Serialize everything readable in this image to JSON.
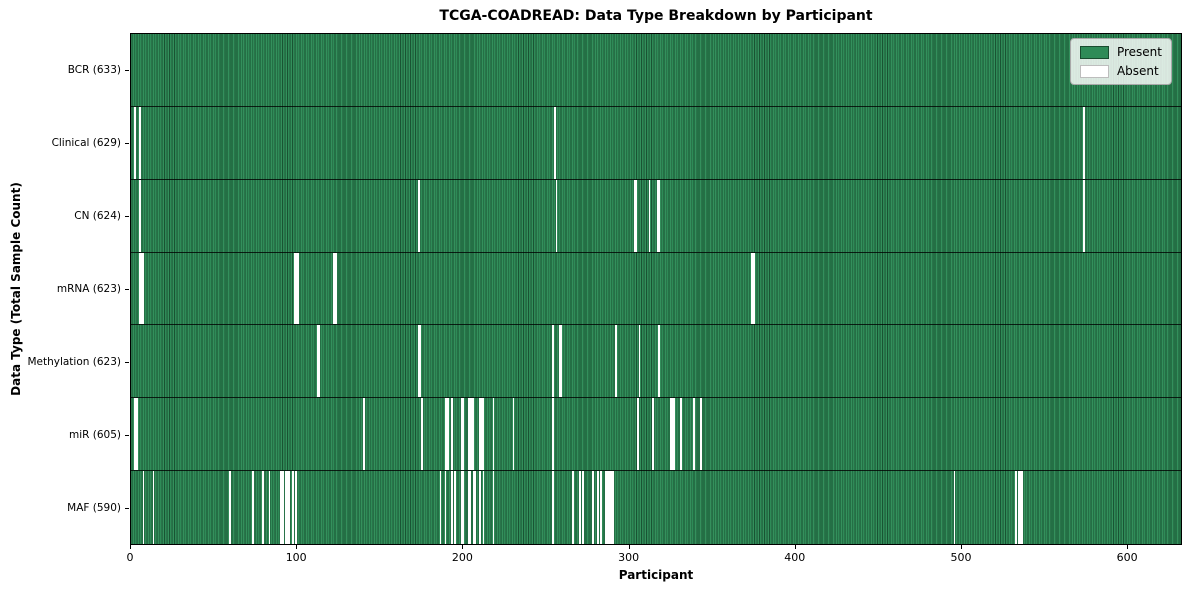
{
  "figure": {
    "title": "TCGA-COADREAD: Data Type Breakdown by Participant",
    "xlabel": "Participant",
    "ylabel": "Data Type (Total Sample Count)"
  },
  "legend": {
    "items": [
      {
        "label": "Present",
        "color": "#2e8b57"
      },
      {
        "label": "Absent",
        "color": "#ffffff"
      }
    ]
  },
  "chart_data": {
    "type": "heatmap",
    "title": "TCGA-COADREAD: Data Type Breakdown by Participant",
    "xlabel": "Participant",
    "ylabel": "Data Type (Total Sample Count)",
    "legend": [
      "Present",
      "Absent"
    ],
    "legend_position": "upper right",
    "grid": false,
    "n_participants": 633,
    "xlim": [
      0,
      633
    ],
    "x_ticks": [
      0,
      100,
      200,
      300,
      400,
      500,
      600
    ],
    "colors": {
      "present": "#2e8b57",
      "absent": "#ffffff"
    },
    "rows": [
      {
        "data_type": "BCR",
        "label": "BCR (633)",
        "present_count": 633,
        "absent_participants": []
      },
      {
        "data_type": "Clinical",
        "label": "Clinical (629)",
        "present_count": 629,
        "absent_participants": [
          2,
          5,
          255,
          574
        ]
      },
      {
        "data_type": "CN",
        "label": "CN (624)",
        "present_count": 624,
        "absent_participants": [
          5,
          173,
          256,
          303,
          304,
          312,
          317,
          318,
          574
        ]
      },
      {
        "data_type": "mRNA",
        "label": "mRNA (623)",
        "present_count": 623,
        "absent_participants": [
          5,
          6,
          7,
          98,
          99,
          100,
          122,
          123,
          374,
          375
        ]
      },
      {
        "data_type": "Methylation",
        "label": "Methylation (623)",
        "present_count": 623,
        "absent_participants": [
          112,
          113,
          173,
          174,
          254,
          258,
          259,
          292,
          306,
          318
        ]
      },
      {
        "data_type": "miR",
        "label": "miR (605)",
        "present_count": 605,
        "absent_participants": [
          2,
          3,
          140,
          175,
          189,
          190,
          191,
          193,
          199,
          200,
          203,
          204,
          205,
          206,
          210,
          211,
          212,
          218,
          230,
          254,
          305,
          314,
          325,
          326,
          327,
          331,
          339,
          343
        ]
      },
      {
        "data_type": "MAF",
        "label": "MAF (590)",
        "present_count": 590,
        "absent_participants": [
          7,
          13,
          59,
          73,
          79,
          83,
          90,
          91,
          93,
          94,
          95,
          97,
          99,
          186,
          189,
          193,
          195,
          199,
          200,
          203,
          204,
          206,
          207,
          210,
          212,
          218,
          254,
          266,
          270,
          272,
          278,
          281,
          283,
          286,
          287,
          288,
          289,
          290,
          496,
          533,
          535,
          536,
          537
        ]
      }
    ]
  }
}
